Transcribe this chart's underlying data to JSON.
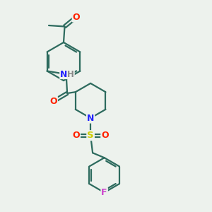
{
  "background_color": "#edf2ed",
  "bond_color": "#2d6b5e",
  "bond_width": 1.6,
  "atom_colors": {
    "O": "#ff2200",
    "N": "#2222ff",
    "S": "#cccc00",
    "F": "#cc44cc",
    "H": "#888888",
    "C": "#2d6b5e"
  },
  "font_size": 8.5,
  "figsize": [
    3.0,
    3.0
  ],
  "dpi": 100
}
